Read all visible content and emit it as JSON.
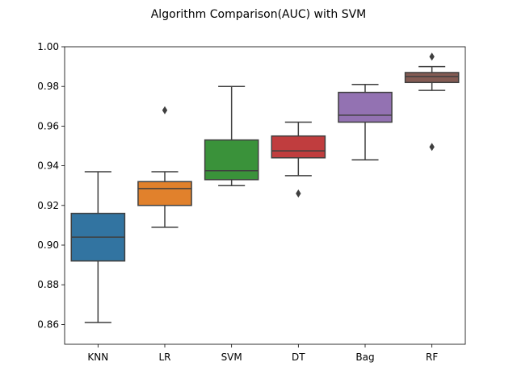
{
  "chart_data": {
    "type": "box",
    "title": "Algorithm Comparison(AUC) with SVM",
    "xlabel": "",
    "ylabel": "",
    "ylim": [
      0.85,
      1.0
    ],
    "yticks": [
      "0.86",
      "0.88",
      "0.90",
      "0.92",
      "0.94",
      "0.96",
      "0.98",
      "1.00"
    ],
    "grid": false,
    "categories": [
      "KNN",
      "LR",
      "SVM",
      "DT",
      "Bag",
      "RF"
    ],
    "series": [
      {
        "category": "KNN",
        "color": "#3274a1",
        "whisker_low": 0.861,
        "q1": 0.892,
        "median": 0.904,
        "q3": 0.916,
        "whisker_high": 0.937,
        "outliers": []
      },
      {
        "category": "LR",
        "color": "#e1812c",
        "whisker_low": 0.909,
        "q1": 0.92,
        "median": 0.9285,
        "q3": 0.932,
        "whisker_high": 0.937,
        "outliers": [
          0.968
        ]
      },
      {
        "category": "SVM",
        "color": "#3a923a",
        "whisker_low": 0.93,
        "q1": 0.933,
        "median": 0.9375,
        "q3": 0.953,
        "whisker_high": 0.98,
        "outliers": []
      },
      {
        "category": "DT",
        "color": "#c03d3e",
        "whisker_low": 0.935,
        "q1": 0.944,
        "median": 0.9475,
        "q3": 0.955,
        "whisker_high": 0.962,
        "outliers": [
          0.926
        ]
      },
      {
        "category": "Bag",
        "color": "#9372b2",
        "whisker_low": 0.943,
        "q1": 0.962,
        "median": 0.9655,
        "q3": 0.977,
        "whisker_high": 0.981,
        "outliers": []
      },
      {
        "category": "RF",
        "color": "#845b53",
        "whisker_low": 0.978,
        "q1": 0.982,
        "median": 0.985,
        "q3": 0.987,
        "whisker_high": 0.99,
        "outliers": [
          0.995,
          0.9495
        ]
      }
    ]
  }
}
